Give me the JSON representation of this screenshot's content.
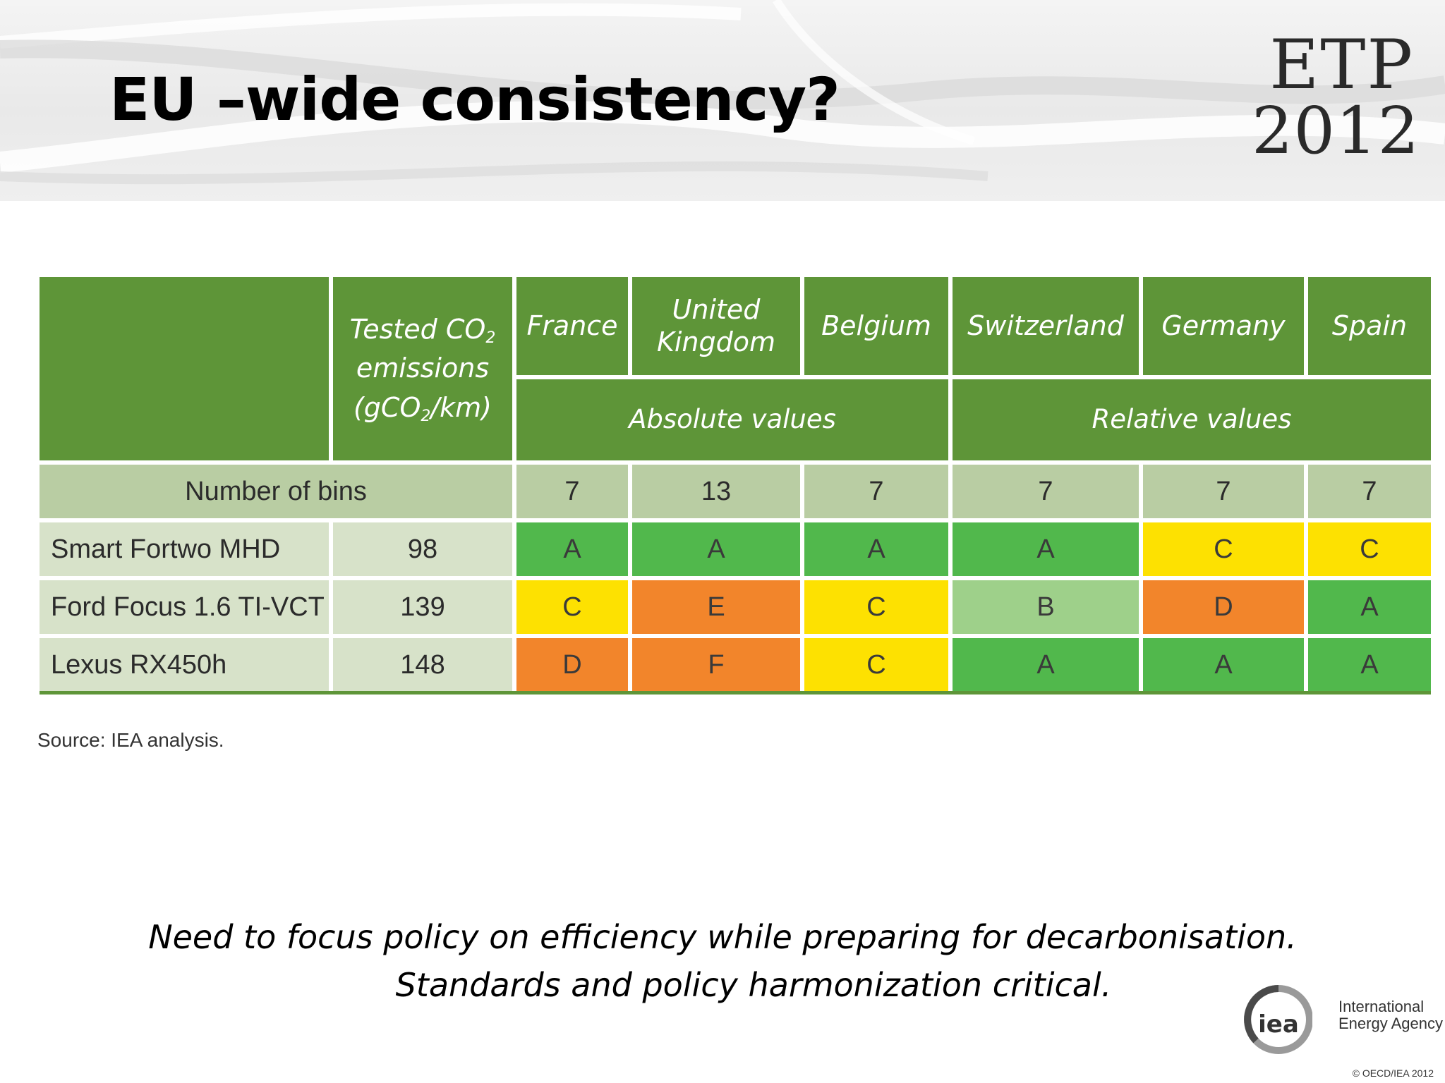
{
  "slide": {
    "title": "EU –wide consistency?",
    "logo_line1": "ETP",
    "logo_line2": "2012"
  },
  "table": {
    "co2_header": {
      "part1": "Tested CO",
      "sub1": "2",
      "part2": "emissions",
      "part3": "(gCO",
      "sub2": "2",
      "part4": "/km)"
    },
    "countries": [
      "France",
      "United Kingdom",
      "Belgium",
      "Switzerland",
      "Germany",
      "Spain"
    ],
    "country_header_lines": [
      [
        "France"
      ],
      [
        "United",
        "Kingdom"
      ],
      [
        "Belgium"
      ],
      [
        "Switzerland"
      ],
      [
        "Germany"
      ],
      [
        "Spain"
      ]
    ],
    "groups": [
      {
        "label": "Absolute values",
        "span": [
          "France",
          "United Kingdom",
          "Belgium"
        ]
      },
      {
        "label": "Relative values",
        "span": [
          "Switzerland",
          "Germany",
          "Spain"
        ]
      }
    ],
    "bins_label": "Number of bins",
    "bins": [
      "7",
      "13",
      "7",
      "7",
      "7",
      "7"
    ],
    "rows": [
      {
        "vehicle": "Smart Fortwo MHD",
        "co2": "98",
        "grades": [
          "A",
          "A",
          "A",
          "A",
          "C",
          "C"
        ]
      },
      {
        "vehicle": "Ford Focus 1.6 TI-VCT",
        "co2": "139",
        "grades": [
          "C",
          "E",
          "C",
          "B",
          "D",
          "A"
        ]
      },
      {
        "vehicle": "Lexus RX450h",
        "co2": "148",
        "grades": [
          "D",
          "F",
          "C",
          "A",
          "A",
          "A"
        ]
      }
    ],
    "grade_colors": {
      "A": "#51b84c",
      "B": "#9ed08a",
      "C": "#fde101",
      "D": "#f2852b",
      "E": "#f2852b",
      "F": "#f2852b"
    },
    "header_color": "#5e9538"
  },
  "source": "Source: IEA analysis.",
  "notes": [
    "Need to focus policy on efficiency while preparing for decarbonisation.",
    "Standards and policy harmonization critical."
  ],
  "footer": {
    "iea_mark": "iea",
    "iea_name_line1": "International",
    "iea_name_line2": "Energy Agency",
    "copyright": "© OECD/IEA 2012"
  }
}
